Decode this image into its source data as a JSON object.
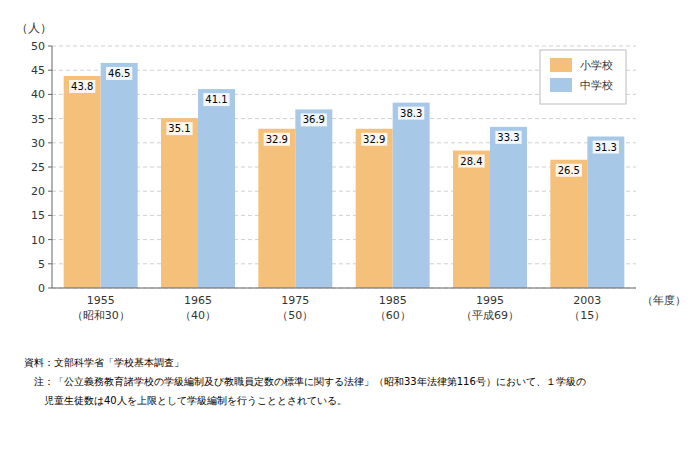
{
  "chart_data": {
    "type": "bar",
    "categories": [
      "1955\n（昭和30）",
      "1965\n（40）",
      "1975\n（50）",
      "1985\n（60）",
      "1995\n（平成69）",
      "2003\n（15）"
    ],
    "series": [
      {
        "name": "小学校",
        "color": "#F5C07A",
        "values": [
          43.8,
          35.1,
          32.9,
          32.9,
          28.4,
          26.5
        ]
      },
      {
        "name": "中学校",
        "color": "#A8C8E8",
        "values": [
          46.5,
          41.1,
          36.9,
          38.3,
          33.3,
          31.3
        ]
      }
    ],
    "ylabel": "（人）",
    "xlabel": "（年度）",
    "ylim": [
      0,
      50
    ],
    "yticks": [
      0,
      5,
      10,
      15,
      20,
      25,
      30,
      35,
      40,
      45,
      50
    ],
    "grid": true,
    "legend": "upper right",
    "data_labels": true,
    "annotations": [
      "資料：文部科学省「学校基本調査」",
      "　注：「公立義務教育諸学校の学級編制及び教職員定数の標準に関する法律」（昭和33年法律第116号）において、１学級の",
      "　　児童生徒数は40人を上限として学級編制を行うこととされている。"
    ]
  }
}
